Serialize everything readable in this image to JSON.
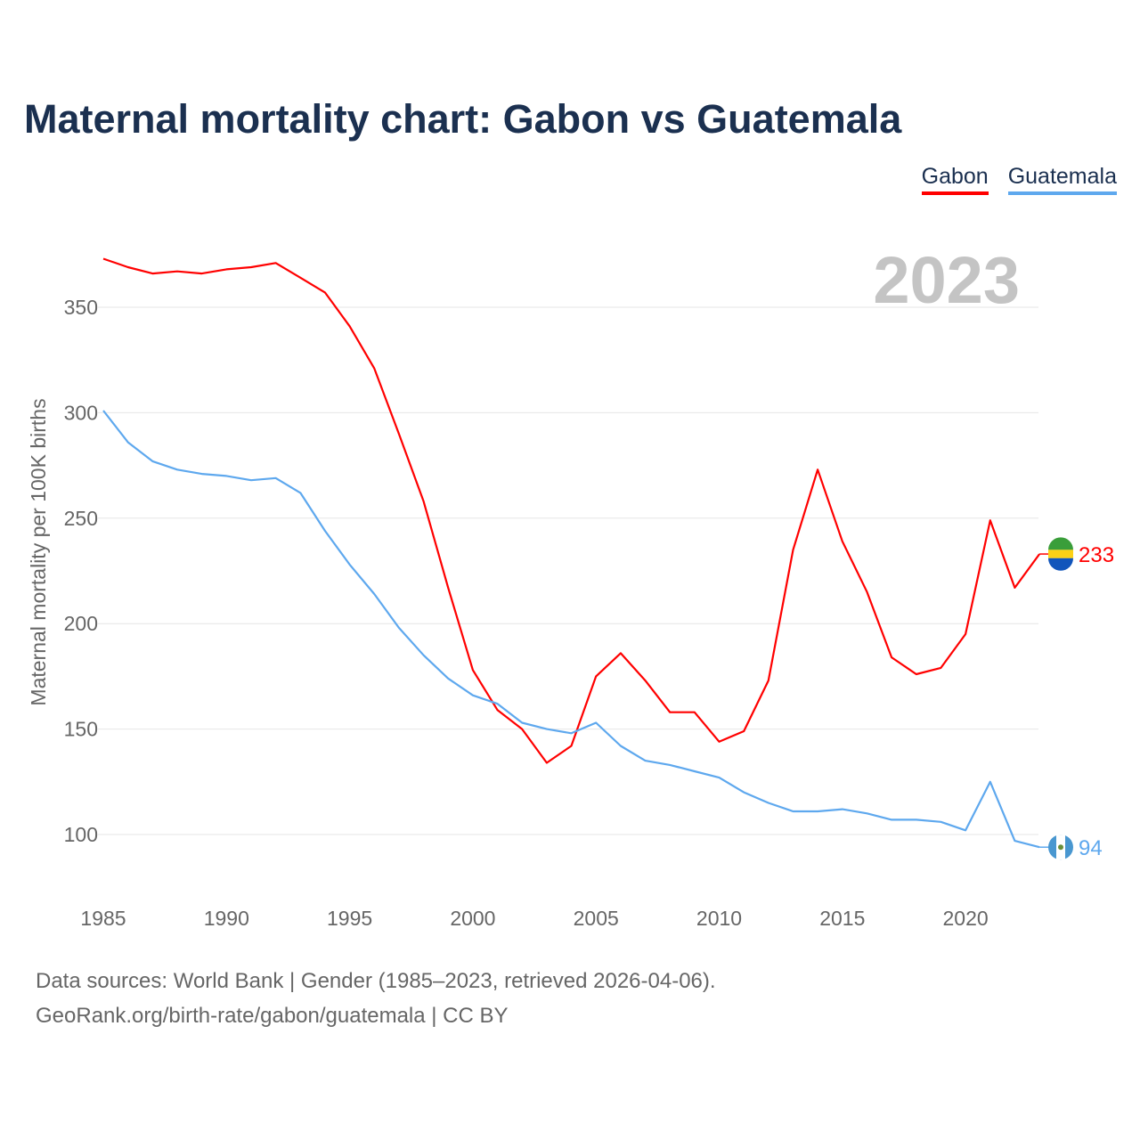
{
  "chart_data": {
    "type": "line",
    "title": "Maternal mortality chart: Gabon vs Guatemala",
    "xlabel": "",
    "ylabel": "Maternal mortality per 100K births",
    "year_label": "2023",
    "x": [
      1985,
      1986,
      1987,
      1988,
      1989,
      1990,
      1991,
      1992,
      1993,
      1994,
      1995,
      1996,
      1997,
      1998,
      1999,
      2000,
      2001,
      2002,
      2003,
      2004,
      2005,
      2006,
      2007,
      2008,
      2009,
      2010,
      2011,
      2012,
      2013,
      2014,
      2015,
      2016,
      2017,
      2018,
      2019,
      2020,
      2021,
      2022,
      2023
    ],
    "series": [
      {
        "name": "Gabon",
        "color": "#ff0000",
        "end_label": "233",
        "values": [
          373,
          369,
          366,
          367,
          366,
          368,
          369,
          371,
          364,
          357,
          341,
          321,
          290,
          258,
          217,
          178,
          159,
          150,
          134,
          142,
          175,
          186,
          173,
          158,
          158,
          144,
          149,
          173,
          235,
          273,
          239,
          215,
          184,
          176,
          179,
          195,
          249,
          217,
          233
        ]
      },
      {
        "name": "Guatemala",
        "color": "#5ea8ee",
        "end_label": "94",
        "values": [
          301,
          286,
          277,
          273,
          271,
          270,
          268,
          269,
          262,
          244,
          228,
          214,
          198,
          185,
          174,
          166,
          162,
          153,
          150,
          148,
          153,
          142,
          135,
          133,
          130,
          127,
          120,
          115,
          111,
          111,
          112,
          110,
          107,
          107,
          106,
          102,
          125,
          97,
          94
        ]
      }
    ],
    "xticks": [
      "1985",
      "1990",
      "1995",
      "2000",
      "2005",
      "2010",
      "2015",
      "2020"
    ],
    "yticks": [
      "100",
      "150",
      "200",
      "250",
      "300",
      "350"
    ],
    "xlim": [
      1985,
      2023
    ],
    "ylim": [
      75,
      380
    ],
    "grid": true,
    "legend_position": "top-right"
  },
  "footer": {
    "line1": "Data sources: World Bank | Gender (1985–2023, retrieved 2026-04-06).",
    "line2": "GeoRank.org/birth-rate/gabon/guatemala | CC BY"
  }
}
